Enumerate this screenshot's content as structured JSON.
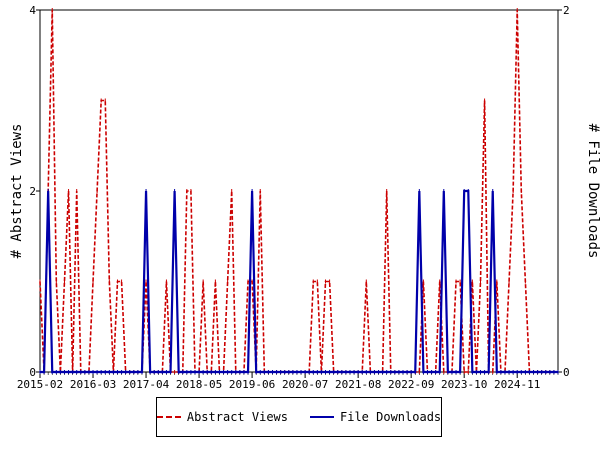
{
  "chart_data": {
    "type": "line",
    "title": "",
    "xlabel": "",
    "ylabel": "# Abstract Views",
    "y2label": "# File Downloads",
    "ylim": [
      0,
      4
    ],
    "y2lim": [
      0,
      2
    ],
    "yticks": [
      0,
      2,
      4
    ],
    "y2ticks": [
      0,
      2
    ],
    "x_start": "2015-02",
    "x_end": "2025-09",
    "xticks": [
      "2015-02",
      "2016-03",
      "2017-04",
      "2018-05",
      "2019-06",
      "2020-07",
      "2021-08",
      "2022-09",
      "2023-10",
      "2024-11"
    ],
    "grid": false,
    "legend_position": "bottom",
    "series": [
      {
        "name": "Abstract Views",
        "axis": "left",
        "color": "#cc0000",
        "style": "dashed",
        "points": [
          [
            "2015-02",
            1
          ],
          [
            "2015-03",
            0
          ],
          [
            "2015-04",
            2
          ],
          [
            "2015-05",
            4
          ],
          [
            "2015-06",
            1
          ],
          [
            "2015-07",
            0
          ],
          [
            "2015-08",
            1
          ],
          [
            "2015-09",
            2
          ],
          [
            "2015-10",
            0
          ],
          [
            "2015-11",
            2
          ],
          [
            "2015-12",
            0
          ],
          [
            "2016-01",
            0
          ],
          [
            "2016-02",
            0
          ],
          [
            "2016-03",
            1
          ],
          [
            "2016-04",
            2
          ],
          [
            "2016-05",
            3
          ],
          [
            "2016-06",
            3
          ],
          [
            "2016-07",
            1
          ],
          [
            "2016-08",
            0
          ],
          [
            "2016-09",
            1
          ],
          [
            "2016-10",
            1
          ],
          [
            "2016-11",
            0
          ],
          [
            "2016-12",
            0
          ],
          [
            "2017-01",
            0
          ],
          [
            "2017-02",
            0
          ],
          [
            "2017-03",
            0
          ],
          [
            "2017-04",
            1
          ],
          [
            "2017-05",
            0
          ],
          [
            "2017-06",
            0
          ],
          [
            "2017-07",
            0
          ],
          [
            "2017-08",
            0
          ],
          [
            "2017-09",
            1
          ],
          [
            "2017-10",
            0
          ],
          [
            "2017-11",
            0
          ],
          [
            "2017-12",
            0
          ],
          [
            "2018-01",
            0
          ],
          [
            "2018-02",
            2
          ],
          [
            "2018-03",
            2
          ],
          [
            "2018-04",
            0
          ],
          [
            "2018-05",
            0
          ],
          [
            "2018-06",
            1
          ],
          [
            "2018-07",
            0
          ],
          [
            "2018-08",
            0
          ],
          [
            "2018-09",
            1
          ],
          [
            "2018-10",
            0
          ],
          [
            "2018-11",
            0
          ],
          [
            "2018-12",
            1
          ],
          [
            "2019-01",
            2
          ],
          [
            "2019-02",
            0
          ],
          [
            "2019-03",
            0
          ],
          [
            "2019-04",
            0
          ],
          [
            "2019-05",
            1
          ],
          [
            "2019-06",
            1
          ],
          [
            "2019-07",
            0
          ],
          [
            "2019-08",
            2
          ],
          [
            "2019-09",
            0
          ],
          [
            "2019-10",
            0
          ],
          [
            "2019-11",
            0
          ],
          [
            "2019-12",
            0
          ],
          [
            "2020-01",
            0
          ],
          [
            "2020-02",
            0
          ],
          [
            "2020-03",
            0
          ],
          [
            "2020-04",
            0
          ],
          [
            "2020-05",
            0
          ],
          [
            "2020-06",
            0
          ],
          [
            "2020-07",
            0
          ],
          [
            "2020-08",
            0
          ],
          [
            "2020-09",
            1
          ],
          [
            "2020-10",
            1
          ],
          [
            "2020-11",
            0
          ],
          [
            "2020-12",
            1
          ],
          [
            "2021-01",
            1
          ],
          [
            "2021-02",
            0
          ],
          [
            "2021-03",
            0
          ],
          [
            "2021-04",
            0
          ],
          [
            "2021-05",
            0
          ],
          [
            "2021-06",
            0
          ],
          [
            "2021-07",
            0
          ],
          [
            "2021-08",
            0
          ],
          [
            "2021-09",
            0
          ],
          [
            "2021-10",
            1
          ],
          [
            "2021-11",
            0
          ],
          [
            "2021-12",
            0
          ],
          [
            "2022-01",
            0
          ],
          [
            "2022-02",
            0
          ],
          [
            "2022-03",
            2
          ],
          [
            "2022-04",
            0
          ],
          [
            "2022-05",
            0
          ],
          [
            "2022-06",
            0
          ],
          [
            "2022-07",
            0
          ],
          [
            "2022-08",
            0
          ],
          [
            "2022-09",
            0
          ],
          [
            "2022-10",
            0
          ],
          [
            "2022-11",
            0
          ],
          [
            "2022-12",
            1
          ],
          [
            "2023-01",
            0
          ],
          [
            "2023-02",
            0
          ],
          [
            "2023-03",
            0
          ],
          [
            "2023-04",
            1
          ],
          [
            "2023-05",
            0
          ],
          [
            "2023-06",
            0
          ],
          [
            "2023-07",
            0
          ],
          [
            "2023-08",
            1
          ],
          [
            "2023-09",
            1
          ],
          [
            "2023-10",
            0
          ],
          [
            "2023-11",
            0
          ],
          [
            "2023-12",
            1
          ],
          [
            "2024-01",
            0
          ],
          [
            "2024-02",
            1
          ],
          [
            "2024-03",
            3
          ],
          [
            "2024-04",
            0
          ],
          [
            "2024-05",
            0
          ],
          [
            "2024-06",
            1
          ],
          [
            "2024-07",
            0
          ],
          [
            "2024-08",
            0
          ],
          [
            "2024-09",
            1
          ],
          [
            "2024-10",
            2
          ],
          [
            "2024-11",
            4
          ],
          [
            "2024-12",
            2
          ],
          [
            "2025-01",
            1
          ],
          [
            "2025-02",
            0
          ],
          [
            "2025-03",
            0
          ],
          [
            "2025-04",
            0
          ],
          [
            "2025-05",
            0
          ],
          [
            "2025-06",
            0
          ],
          [
            "2025-07",
            0
          ],
          [
            "2025-08",
            0
          ],
          [
            "2025-09",
            0
          ]
        ]
      },
      {
        "name": "File Downloads",
        "axis": "right",
        "color": "#0000aa",
        "style": "solid",
        "points": [
          [
            "2015-02",
            0
          ],
          [
            "2015-03",
            0
          ],
          [
            "2015-04",
            1
          ],
          [
            "2015-05",
            0
          ],
          [
            "2015-06",
            0
          ],
          [
            "2015-07",
            0
          ],
          [
            "2015-08",
            0
          ],
          [
            "2015-09",
            0
          ],
          [
            "2015-10",
            0
          ],
          [
            "2015-11",
            0
          ],
          [
            "2015-12",
            0
          ],
          [
            "2016-01",
            0
          ],
          [
            "2016-02",
            0
          ],
          [
            "2016-03",
            0
          ],
          [
            "2016-04",
            0
          ],
          [
            "2016-05",
            0
          ],
          [
            "2016-06",
            0
          ],
          [
            "2016-07",
            0
          ],
          [
            "2016-08",
            0
          ],
          [
            "2016-09",
            0
          ],
          [
            "2016-10",
            0
          ],
          [
            "2016-11",
            0
          ],
          [
            "2016-12",
            0
          ],
          [
            "2017-01",
            0
          ],
          [
            "2017-02",
            0
          ],
          [
            "2017-03",
            0
          ],
          [
            "2017-04",
            1
          ],
          [
            "2017-05",
            0
          ],
          [
            "2017-06",
            0
          ],
          [
            "2017-07",
            0
          ],
          [
            "2017-08",
            0
          ],
          [
            "2017-09",
            0
          ],
          [
            "2017-10",
            0
          ],
          [
            "2017-11",
            1
          ],
          [
            "2017-12",
            0
          ],
          [
            "2018-01",
            0
          ],
          [
            "2018-02",
            0
          ],
          [
            "2018-03",
            0
          ],
          [
            "2018-04",
            0
          ],
          [
            "2018-05",
            0
          ],
          [
            "2018-06",
            0
          ],
          [
            "2018-07",
            0
          ],
          [
            "2018-08",
            0
          ],
          [
            "2018-09",
            0
          ],
          [
            "2018-10",
            0
          ],
          [
            "2018-11",
            0
          ],
          [
            "2018-12",
            0
          ],
          [
            "2019-01",
            0
          ],
          [
            "2019-02",
            0
          ],
          [
            "2019-03",
            0
          ],
          [
            "2019-04",
            0
          ],
          [
            "2019-05",
            0
          ],
          [
            "2019-06",
            1
          ],
          [
            "2019-07",
            0
          ],
          [
            "2019-08",
            0
          ],
          [
            "2019-09",
            0
          ],
          [
            "2019-10",
            0
          ],
          [
            "2019-11",
            0
          ],
          [
            "2019-12",
            0
          ],
          [
            "2020-01",
            0
          ],
          [
            "2020-02",
            0
          ],
          [
            "2020-03",
            0
          ],
          [
            "2020-04",
            0
          ],
          [
            "2020-05",
            0
          ],
          [
            "2020-06",
            0
          ],
          [
            "2020-07",
            0
          ],
          [
            "2020-08",
            0
          ],
          [
            "2020-09",
            0
          ],
          [
            "2020-10",
            0
          ],
          [
            "2020-11",
            0
          ],
          [
            "2020-12",
            0
          ],
          [
            "2021-01",
            0
          ],
          [
            "2021-02",
            0
          ],
          [
            "2021-03",
            0
          ],
          [
            "2021-04",
            0
          ],
          [
            "2021-05",
            0
          ],
          [
            "2021-06",
            0
          ],
          [
            "2021-07",
            0
          ],
          [
            "2021-08",
            0
          ],
          [
            "2021-09",
            0
          ],
          [
            "2021-10",
            0
          ],
          [
            "2021-11",
            0
          ],
          [
            "2021-12",
            0
          ],
          [
            "2022-01",
            0
          ],
          [
            "2022-02",
            0
          ],
          [
            "2022-03",
            0
          ],
          [
            "2022-04",
            0
          ],
          [
            "2022-05",
            0
          ],
          [
            "2022-06",
            0
          ],
          [
            "2022-07",
            0
          ],
          [
            "2022-08",
            0
          ],
          [
            "2022-09",
            0
          ],
          [
            "2022-10",
            0
          ],
          [
            "2022-11",
            1
          ],
          [
            "2022-12",
            0
          ],
          [
            "2023-01",
            0
          ],
          [
            "2023-02",
            0
          ],
          [
            "2023-03",
            0
          ],
          [
            "2023-04",
            0
          ],
          [
            "2023-05",
            1
          ],
          [
            "2023-06",
            0
          ],
          [
            "2023-07",
            0
          ],
          [
            "2023-08",
            0
          ],
          [
            "2023-09",
            0
          ],
          [
            "2023-10",
            1
          ],
          [
            "2023-11",
            1
          ],
          [
            "2023-12",
            0
          ],
          [
            "2024-01",
            0
          ],
          [
            "2024-02",
            0
          ],
          [
            "2024-03",
            0
          ],
          [
            "2024-04",
            0
          ],
          [
            "2024-05",
            1
          ],
          [
            "2024-06",
            0
          ],
          [
            "2024-07",
            0
          ],
          [
            "2024-08",
            0
          ],
          [
            "2024-09",
            0
          ],
          [
            "2024-10",
            0
          ],
          [
            "2024-11",
            0
          ],
          [
            "2024-12",
            0
          ],
          [
            "2025-01",
            0
          ],
          [
            "2025-02",
            0
          ],
          [
            "2025-03",
            0
          ],
          [
            "2025-04",
            0
          ],
          [
            "2025-05",
            0
          ],
          [
            "2025-06",
            0
          ],
          [
            "2025-07",
            0
          ],
          [
            "2025-08",
            0
          ],
          [
            "2025-09",
            0
          ]
        ]
      }
    ]
  }
}
